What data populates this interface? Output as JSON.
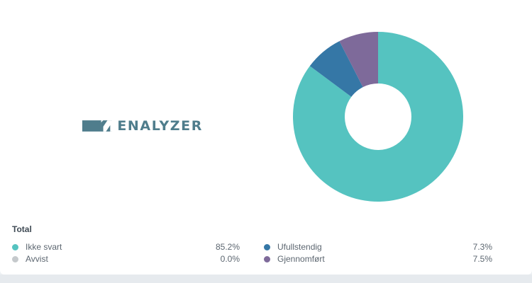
{
  "logo": {
    "text": "ENALYZER",
    "color": "#4f7d8c"
  },
  "legend": {
    "title": "Total"
  },
  "chart_data": {
    "type": "pie",
    "donut": true,
    "categories": [
      "Ikke svart",
      "Avvist",
      "Ufullstendig",
      "Gjennomført"
    ],
    "values": [
      85.2,
      0.0,
      7.3,
      7.5
    ],
    "value_labels": [
      "85.2%",
      "0.0%",
      "7.3%",
      "7.5%"
    ],
    "colors": [
      "#55c3c0",
      "#c5c9cc",
      "#3577a6",
      "#7e6a9a"
    ],
    "slice_order": [
      "Ikke svart",
      "Avvist",
      "Ufullstendig",
      "Gjennomført"
    ],
    "start_angle_deg": 0,
    "direction": "clockwise"
  }
}
